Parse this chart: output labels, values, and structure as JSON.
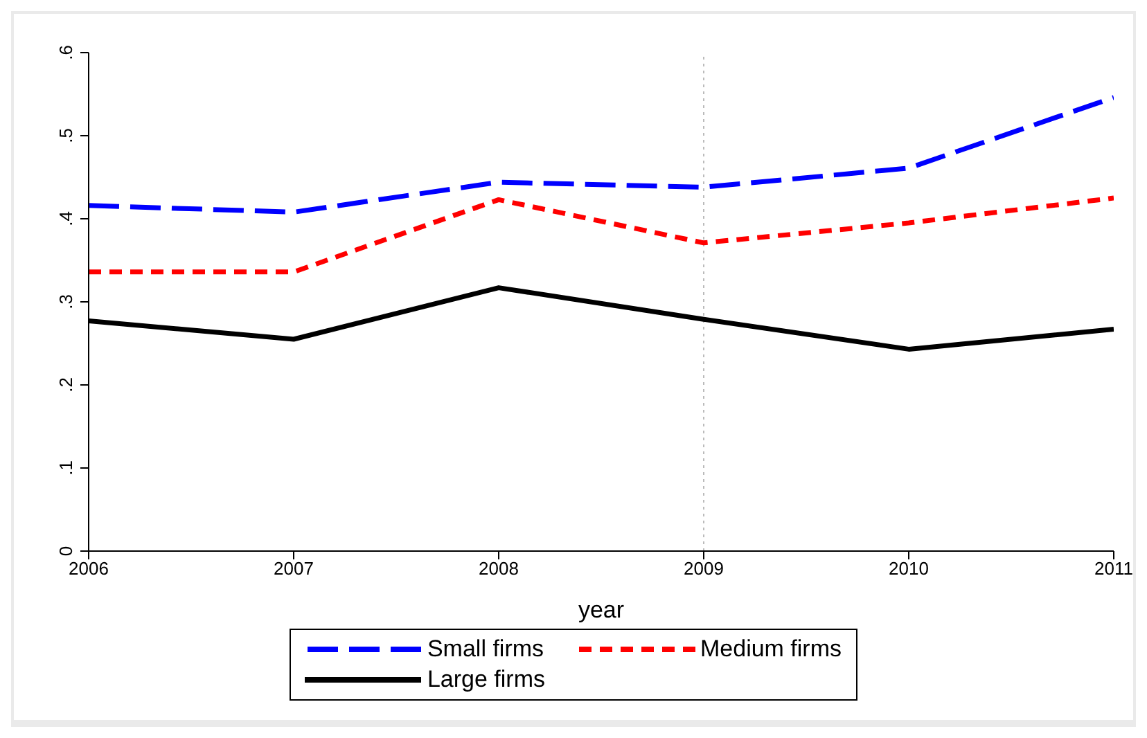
{
  "chart_data": {
    "type": "line",
    "xlabel": "year",
    "x": [
      2006,
      2007,
      2008,
      2009,
      2010,
      2011
    ],
    "xlim": [
      2006,
      2011
    ],
    "xticks": [
      2006,
      2007,
      2008,
      2009,
      2010,
      2011
    ],
    "ylim": [
      0,
      0.6
    ],
    "yticks": [
      {
        "value": 0,
        "label": "0"
      },
      {
        "value": 0.1,
        "label": ".1"
      },
      {
        "value": 0.2,
        "label": ".2"
      },
      {
        "value": 0.3,
        "label": ".3"
      },
      {
        "value": 0.4,
        "label": ".4"
      },
      {
        "value": 0.5,
        "label": ".5"
      },
      {
        "value": 0.6,
        "label": ".6"
      }
    ],
    "series": [
      {
        "name": "Small firms",
        "color": "#0000ff",
        "line_style": "dashed",
        "values": [
          0.416,
          0.408,
          0.444,
          0.438,
          0.461,
          0.546
        ]
      },
      {
        "name": "Medium firms",
        "color": "#ff0000",
        "line_style": "dashed",
        "values": [
          0.336,
          0.336,
          0.423,
          0.371,
          0.395,
          0.425
        ]
      },
      {
        "name": "Large firms",
        "color": "#000000",
        "line_style": "solid",
        "values": [
          0.277,
          0.255,
          0.317,
          0.279,
          0.243,
          0.267
        ]
      }
    ],
    "ref_lines": [
      {
        "axis": "x",
        "value": 2009,
        "color": "#bbbbbb",
        "line_style": "dotted"
      }
    ],
    "legend": "bottom",
    "marker": "none"
  }
}
